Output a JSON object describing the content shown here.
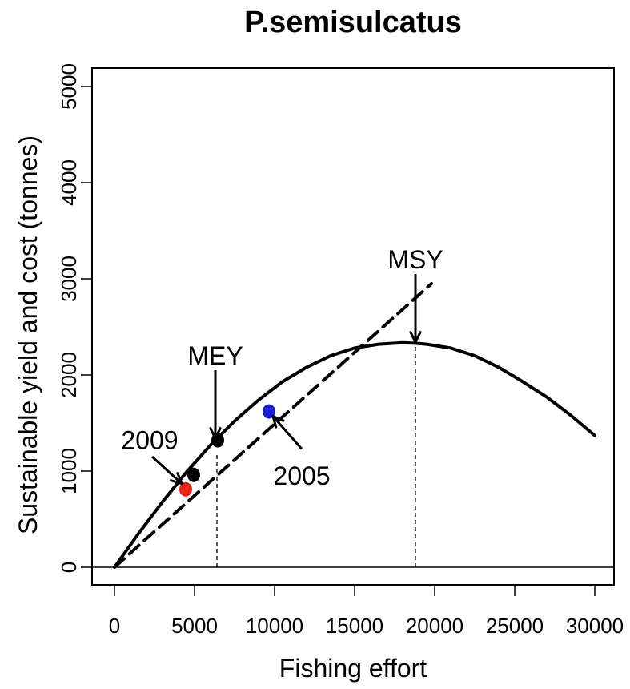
{
  "chart_data": {
    "type": "line",
    "title": "P.semisulcatus",
    "xlabel": "Fishing effort",
    "ylabel": "Sustainable yield and cost (tonnes)",
    "xlim": [
      0,
      30000
    ],
    "ylim": [
      0,
      5000
    ],
    "x_ticks": [
      0,
      5000,
      10000,
      15000,
      20000,
      25000,
      30000
    ],
    "y_ticks": [
      0,
      1000,
      2000,
      3000,
      4000,
      5000
    ],
    "x_tick_labels": [
      "0",
      "5000",
      "10000",
      "15000",
      "20000",
      "25000",
      "30000"
    ],
    "y_tick_labels": [
      "0",
      "1000",
      "2000",
      "3000",
      "4000",
      "5000"
    ],
    "grid": false,
    "series": [
      {
        "style": "solid",
        "color": "#000000",
        "x": [
          0,
          1500,
          3000,
          4500,
          6000,
          7500,
          9000,
          10500,
          12000,
          13500,
          15000,
          16500,
          18000,
          18800,
          19500,
          21000,
          22500,
          24000,
          25500,
          27000,
          28500,
          30000
        ],
        "y": [
          0,
          350,
          680,
          990,
          1270,
          1520,
          1740,
          1930,
          2080,
          2200,
          2280,
          2320,
          2335,
          2330,
          2320,
          2280,
          2200,
          2080,
          1930,
          1770,
          1580,
          1370
        ]
      },
      {
        "style": "dashed",
        "color": "#000000",
        "x": [
          0,
          19800
        ],
        "y": [
          0,
          2950
        ]
      }
    ],
    "reference_lines": [
      {
        "type": "horizontal",
        "y": 0,
        "style": "solid"
      },
      {
        "type": "vertical",
        "x": 6400,
        "y_top": 1180,
        "style": "dotted"
      },
      {
        "type": "vertical",
        "x": 18800,
        "y_top": 2335,
        "style": "dotted"
      }
    ],
    "points": [
      {
        "x": 4450,
        "y": 810,
        "color": "#e8231a"
      },
      {
        "x": 4950,
        "y": 960,
        "color": "#000000"
      },
      {
        "x": 6450,
        "y": 1320,
        "color": "#000000"
      },
      {
        "x": 9650,
        "y": 1620,
        "color": "#1b1bd4"
      }
    ],
    "annotations": [
      {
        "text": "MSY",
        "text_x": 18800,
        "text_y": 3200,
        "arrow_from": [
          18800,
          3050
        ],
        "arrow_to": [
          18800,
          2340
        ]
      },
      {
        "text": "MEY",
        "text_x": 6300,
        "text_y": 2200,
        "arrow_from": [
          6300,
          2050
        ],
        "arrow_to": [
          6300,
          1340
        ]
      },
      {
        "text": "2009",
        "text_x": 2200,
        "text_y": 1320,
        "arrow_from": [
          2350,
          1150
        ],
        "arrow_to": [
          4200,
          870
        ]
      },
      {
        "text": "2005",
        "text_x": 11700,
        "text_y": 950,
        "arrow_from": [
          11700,
          1230
        ],
        "arrow_to": [
          9900,
          1570
        ]
      }
    ]
  }
}
